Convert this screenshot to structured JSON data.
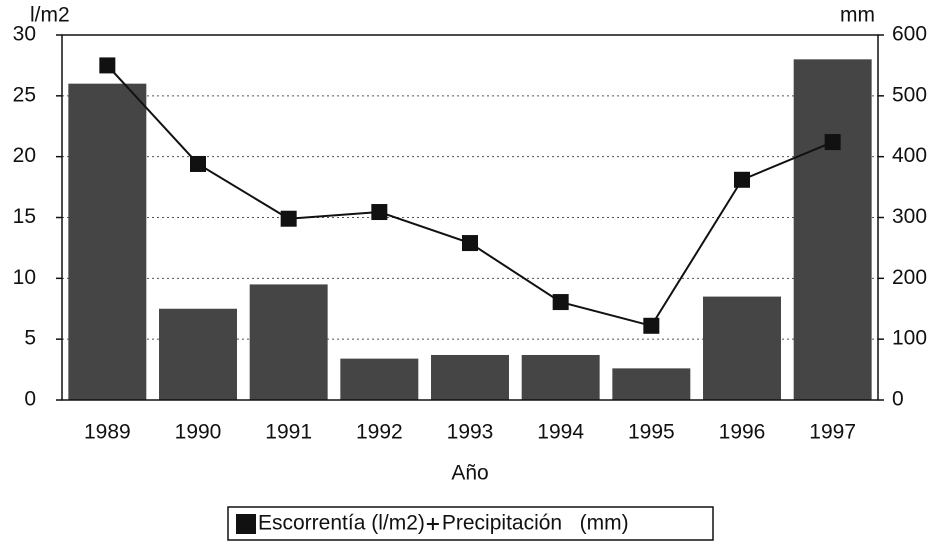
{
  "chart_data": {
    "type": "bar_line",
    "y_label": "l/m2",
    "y2_label": "mm",
    "x_label": "Año",
    "categories": [
      "1989",
      "1990",
      "1991",
      "1992",
      "1993",
      "1994",
      "1995",
      "1996",
      "1997"
    ],
    "series": [
      {
        "name": "Escorrentía (l/m2)",
        "type": "bar",
        "color": "#454545",
        "values": [
          26,
          7.5,
          9.5,
          3.4,
          3.7,
          3.7,
          2.6,
          8.5,
          28
        ]
      },
      {
        "name": "Precipitación   (mm)",
        "type": "line",
        "axis": "y2",
        "color": "#111111",
        "values": [
          550,
          388,
          298,
          309,
          258,
          161,
          122,
          362,
          424
        ]
      }
    ],
    "ylim": [
      0,
      30
    ],
    "yticks": [
      0,
      5,
      10,
      15,
      20,
      25,
      30
    ],
    "y2lim": [
      0,
      600
    ],
    "y2ticks": [
      0,
      100,
      200,
      300,
      400,
      500,
      600
    ],
    "grid": true
  }
}
